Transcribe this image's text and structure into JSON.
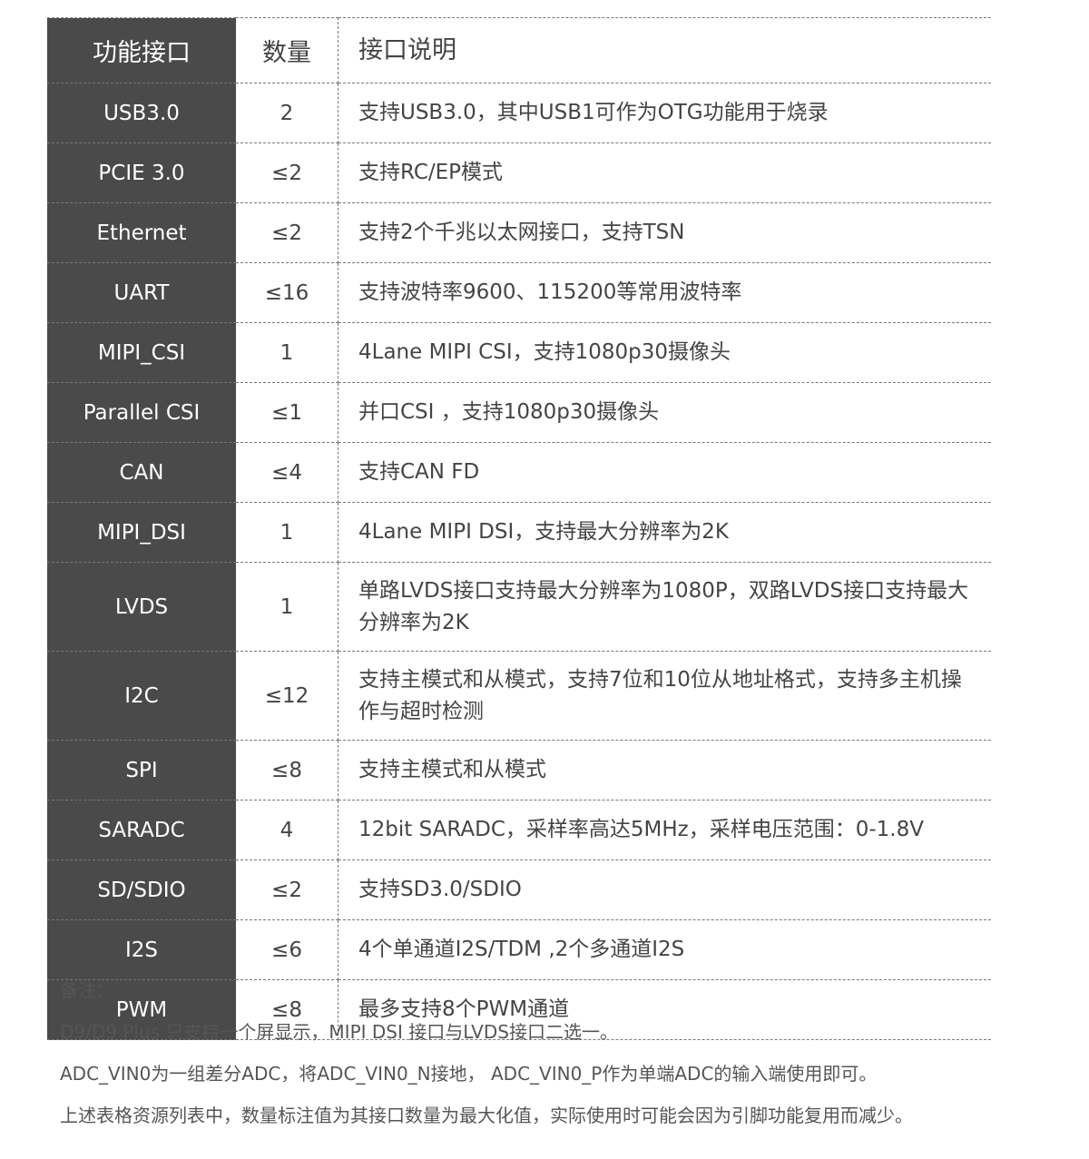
{
  "header": [
    "功能接口",
    "数量",
    "接口说明"
  ],
  "rows": [
    [
      "USB3.0",
      "2",
      "支持USB3.0，其中USB1可作为OTG功能用于烧录"
    ],
    [
      "PCIE 3.0",
      "≤2",
      "支持RC/EP模式"
    ],
    [
      "Ethernet",
      "≤2",
      "支持2个千兆以太网接口，支持TSN"
    ],
    [
      "UART",
      "≤16",
      "支持波特率9600、115200等常用波特率"
    ],
    [
      "MIPI_CSI",
      "1",
      "4Lane MIPI CSI，支持1080p30摄像头"
    ],
    [
      "Parallel CSI",
      "≤1",
      "并口CSI ，支持1080p30摄像头"
    ],
    [
      "CAN",
      "≤4",
      "支持CAN FD"
    ],
    [
      "MIPI_DSI",
      "1",
      "4Lane MIPI DSI，支持最大分辨率为2K"
    ],
    [
      "LVDS",
      "1",
      "单路LVDS接口支持最大分辨率为1080P，双路LVDS接口支持最大分辨率为2K"
    ],
    [
      "I2C",
      "≤12",
      "支持主模式和从模式，支持7位和10位从地址格式，支持多主机操作与超时检测"
    ],
    [
      "SPI",
      "≤8",
      "支持主模式和从模式"
    ],
    [
      "SARADC",
      "4",
      "12bit SARADC，采样率高达5MHz，采样电压范围：0-1.8V"
    ],
    [
      "SD/SDIO",
      "≤2",
      "支持SD3.0/SDIO"
    ],
    [
      "I2S",
      "≤6",
      "4个单通道I2S/TDM ,2个多通道I2S"
    ],
    [
      "PWM",
      "≤8",
      "最多支持8个PWM通道"
    ]
  ],
  "notes": [
    "备注：",
    "D9/D9 Plus 只支持一个屏显示，MIPI DSI 接口与LVDS接口二选一。",
    "ADC_VIN0为一组差分ADC，将ADC_VIN0_N接地， ADC_VIN0_P作为单端ADC的输入端使用即可。",
    "上述表格资源列表中，数量标注值为其接口数量为最大化值，实际使用时可能会因为引脚功能复用而减少。"
  ]
}
